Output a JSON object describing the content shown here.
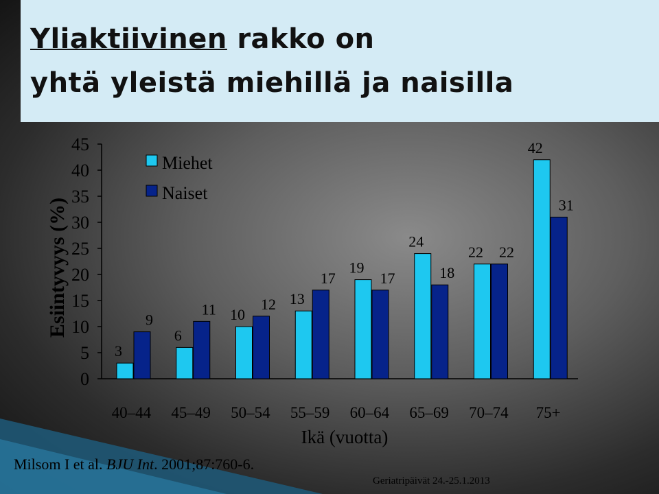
{
  "slide": {
    "title_part1": "Yliaktiivinen",
    "title_part2": " rakko on",
    "title_line2": "yhtä yleistä miehillä ja naisilla",
    "citation_prefix": "Milsom I et al. ",
    "citation_journal": "BJU Int",
    "citation_suffix": ". 2001;87:760-6.",
    "footer": "Geriatripäivät 24.-25.1.2013"
  },
  "colors": {
    "miehet": "#1ec8f0",
    "naiset": "#06238a",
    "title_background": "#d4ebf5"
  },
  "chart_data": {
    "type": "bar",
    "ylabel": "Esiintyvyys (%)",
    "xlabel": "Ikä (vuotta)",
    "categories": [
      "40–44",
      "45–49",
      "50–54",
      "55–59",
      "60–64",
      "65–69",
      "70–74",
      "75+"
    ],
    "series": [
      {
        "name": "Miehet",
        "values": [
          3,
          6,
          10,
          13,
          19,
          24,
          22,
          42
        ]
      },
      {
        "name": "Naiset",
        "values": [
          9,
          11,
          12,
          17,
          17,
          18,
          22,
          31
        ]
      }
    ],
    "ylim": [
      0,
      45
    ],
    "yticks": [
      0,
      5,
      10,
      15,
      20,
      25,
      30,
      35,
      40,
      45
    ],
    "legend_position": "top-left",
    "data_labels": true,
    "grid": false
  }
}
